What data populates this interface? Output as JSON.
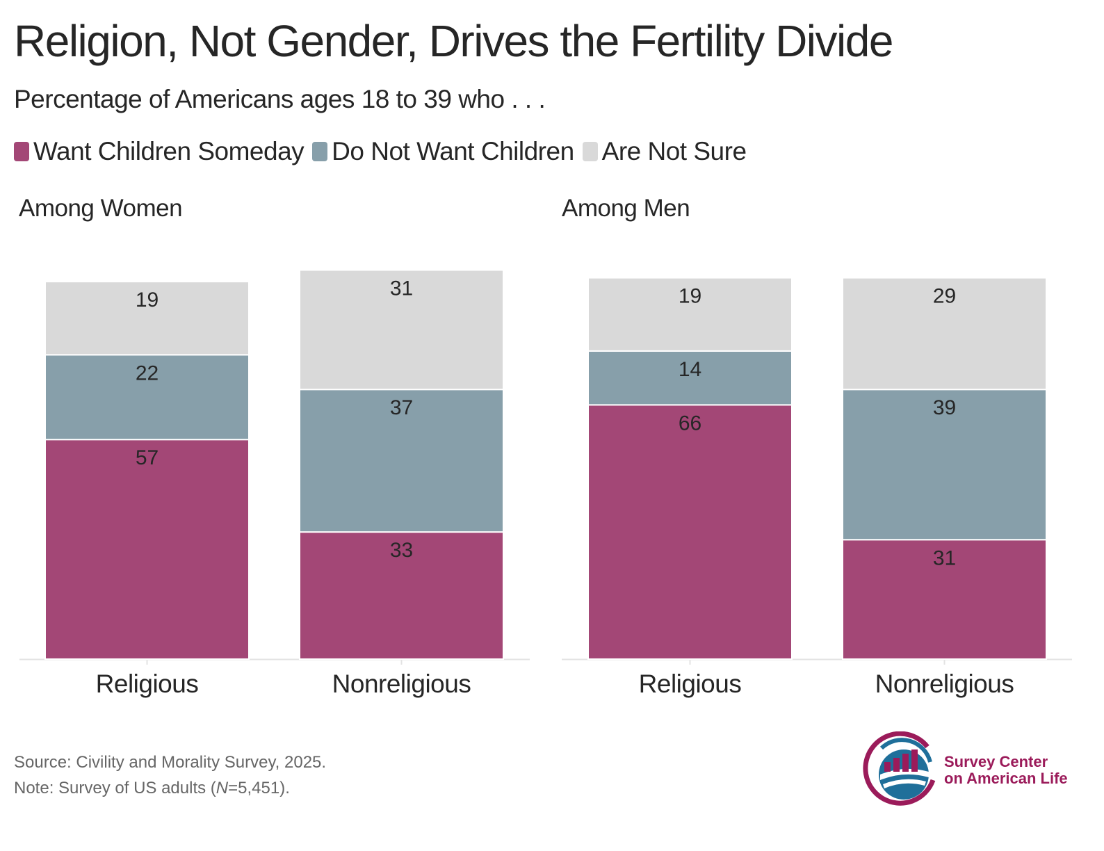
{
  "title": "Religion, Not Gender, Drives the Fertility Divide",
  "subtitle": "Percentage of Americans ages 18 to 39 who . . .",
  "legend": [
    {
      "label": "Want Children Someday",
      "color": "#a34776"
    },
    {
      "label": "Do Not Want Children",
      "color": "#879faa"
    },
    {
      "label": "Are Not Sure",
      "color": "#d9d9d9"
    }
  ],
  "chart_data": {
    "type": "bar",
    "stacked": true,
    "title": "Religion, Not Gender, Drives the Fertility Divide",
    "subtitle": "Percentage of Americans ages 18 to 39 who . . .",
    "ylim": [
      0,
      100
    ],
    "panels": [
      {
        "title": "Among Women",
        "categories": [
          "Religious",
          "Nonreligious"
        ],
        "series": [
          {
            "name": "Want Children Someday",
            "values": [
              57,
              33
            ]
          },
          {
            "name": "Do Not Want Children",
            "values": [
              22,
              37
            ]
          },
          {
            "name": "Are Not Sure",
            "values": [
              19,
              31
            ]
          }
        ]
      },
      {
        "title": "Among Men",
        "categories": [
          "Religious",
          "Nonreligious"
        ],
        "series": [
          {
            "name": "Want Children Someday",
            "values": [
              66,
              31
            ]
          },
          {
            "name": "Do Not Want Children",
            "values": [
              14,
              39
            ]
          },
          {
            "name": "Are Not Sure",
            "values": [
              19,
              29
            ]
          }
        ]
      }
    ]
  },
  "source": "Source: Civility and Morality Survey, 2025.",
  "note_prefix": "Note: Survey of US adults (",
  "note_n": "N",
  "note_suffix": "=5,451).",
  "logo": {
    "line1": "Survey Center",
    "line2": "on American Life"
  }
}
